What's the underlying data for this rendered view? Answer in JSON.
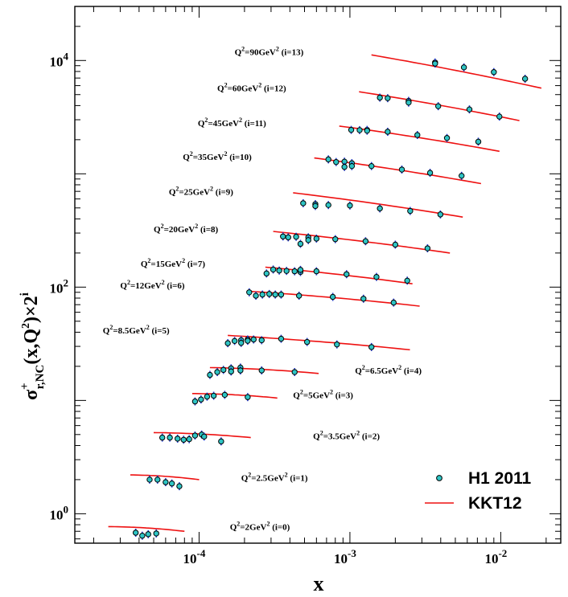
{
  "chart_data": {
    "type": "scatter",
    "xlabel": "x",
    "ylabel": {
      "base": "σ",
      "sup": "+",
      "sub": "r,NC",
      "rest": "(x,Q",
      "sup2": "2",
      "rest2": ")×2",
      "sup3": "i"
    },
    "xscale": "log",
    "yscale": "log",
    "xlim": [
      1.5e-05,
      0.025
    ],
    "ylim": [
      0.55,
      30000
    ],
    "x_ticks": [
      {
        "value": 0.0001,
        "base": "10",
        "exp": "-4"
      },
      {
        "value": 0.001,
        "base": "10",
        "exp": "-3"
      },
      {
        "value": 0.01,
        "base": "10",
        "exp": "-2"
      }
    ],
    "y_ticks": [
      {
        "value": 1,
        "base": "10",
        "exp": "0"
      },
      {
        "value": 100,
        "base": "10",
        "exp": "2"
      },
      {
        "value": 10000,
        "base": "10",
        "exp": "4"
      }
    ],
    "legend": {
      "position": "bottom-right",
      "entries": [
        {
          "label": "H1 2011",
          "type": "marker",
          "color": "#2ec4c4"
        },
        {
          "label": "KKT12",
          "type": "line",
          "color": "#ee1111"
        }
      ]
    },
    "colors": {
      "data_fill": "#2ec4c4",
      "data_edge": "#000000",
      "error_bar": "#1e3cd2",
      "model_line": "#ee1111"
    },
    "bins": [
      {
        "i": 0,
        "label": "Q²=2GeV² (i=0)",
        "label_x": 0.00016,
        "label_y": 0.72,
        "label_side": "right",
        "model": [
          [
            2.5e-05,
            0.77
          ],
          [
            8e-05,
            0.7
          ]
        ],
        "points": [
          [
            3.8e-05,
            0.68,
            0.04
          ],
          [
            4.2e-05,
            0.64,
            0.05
          ],
          [
            4.6e-05,
            0.66,
            0.03
          ],
          [
            5.2e-05,
            0.67,
            0.03
          ]
        ]
      },
      {
        "i": 1,
        "label": "Q²=2.5GeV² (i=1)",
        "label_x": 0.00019,
        "label_y": 1.95,
        "label_side": "right",
        "model": [
          [
            3.5e-05,
            2.2
          ],
          [
            0.0001,
            2.0
          ]
        ],
        "points": [
          [
            4.7e-05,
            2.0,
            0.05
          ],
          [
            5.3e-05,
            2.0,
            0.05
          ],
          [
            6e-05,
            1.9,
            0.05
          ],
          [
            6.6e-05,
            1.85,
            0.05
          ],
          [
            7.4e-05,
            1.75,
            0.08
          ]
        ]
      },
      {
        "i": 2,
        "label": "Q²=3.5GeV² (i=2)",
        "label_x": 0.00057,
        "label_y": 4.55,
        "label_side": "right",
        "model": [
          [
            5e-05,
            5.2
          ],
          [
            0.00022,
            4.7
          ]
        ],
        "points": [
          [
            5.7e-05,
            4.7,
            0.1
          ],
          [
            6.4e-05,
            4.7,
            0.1
          ],
          [
            7.2e-05,
            4.6,
            0.1
          ],
          [
            7.9e-05,
            4.5,
            0.2
          ],
          [
            8.6e-05,
            4.55,
            0.1
          ],
          [
            9.4e-05,
            4.9,
            0.1
          ],
          [
            0.000104,
            5.0,
            0.15
          ],
          [
            0.000108,
            4.8,
            0.1
          ],
          [
            0.00014,
            4.35,
            0.1
          ]
        ]
      },
      {
        "i": 3,
        "label": "Q²=5GeV² (i=3)",
        "label_x": 0.00042,
        "label_y": 10.5,
        "label_side": "right",
        "model": [
          [
            9e-05,
            11.5
          ],
          [
            0.00033,
            10.5
          ]
        ],
        "points": [
          [
            9.4e-05,
            9.8,
            0.4
          ],
          [
            0.000103,
            10.2,
            0.2
          ],
          [
            0.000113,
            10.8,
            0.2
          ],
          [
            0.000125,
            11.0,
            0.2
          ],
          [
            0.000148,
            11.2,
            0.3
          ],
          [
            0.00021,
            10.7,
            0.2
          ]
        ]
      },
      {
        "i": 4,
        "label": "Q²=6.5GeV² (i=4)",
        "label_x": 0.00108,
        "label_y": 17.2,
        "label_side": "right",
        "model": [
          [
            0.000118,
            19.5
          ],
          [
            0.00062,
            17.3
          ]
        ],
        "points": [
          [
            0.000118,
            16.8,
            0.7
          ],
          [
            0.000132,
            17.8,
            0.4
          ],
          [
            0.000145,
            18.6,
            0.3
          ],
          [
            0.000163,
            19.2,
            0.3
          ],
          [
            0.000163,
            18.0,
            0.5
          ],
          [
            0.000188,
            19.5,
            0.4
          ],
          [
            0.000188,
            18.4,
            0.3
          ],
          [
            0.00026,
            18.4,
            0.3
          ],
          [
            0.00043,
            17.8,
            0.3
          ]
        ]
      },
      {
        "i": 5,
        "label": "Q²=8.5GeV² (i=5)",
        "label_x": 2.3e-05,
        "label_y": 39,
        "label_side": "left",
        "model": [
          [
            0.000155,
            37.5
          ],
          [
            0.0025,
            28
          ]
        ],
        "points": [
          [
            0.000155,
            32.0,
            1.3
          ],
          [
            0.000172,
            33.5,
            0.6
          ],
          [
            0.00019,
            34.0,
            0.6
          ],
          [
            0.00019,
            32.2,
            1.0
          ],
          [
            0.00021,
            34.5,
            0.5
          ],
          [
            0.00021,
            33.6,
            0.6
          ],
          [
            0.00023,
            34.5,
            0.5
          ],
          [
            0.00026,
            34.0,
            0.5
          ],
          [
            0.00035,
            35.0,
            0.5
          ],
          [
            0.00052,
            32.8,
            0.5
          ],
          [
            0.00082,
            31.2,
            0.5
          ],
          [
            0.00139,
            29.6,
            0.5
          ]
        ]
      },
      {
        "i": 6,
        "label": "Q²=12GeV² (i=6)",
        "label_x": 3e-05,
        "label_y": 97,
        "label_side": "left",
        "model": [
          [
            0.00021,
            92
          ],
          [
            0.0029,
            68
          ]
        ],
        "points": [
          [
            0.000215,
            90,
            2
          ],
          [
            0.000238,
            84,
            2
          ],
          [
            0.000263,
            86,
            2
          ],
          [
            0.000292,
            87,
            2
          ],
          [
            0.00032,
            86,
            2
          ],
          [
            0.00035,
            86,
            2
          ],
          [
            0.00046,
            84,
            2
          ],
          [
            0.00077,
            82,
            2
          ],
          [
            0.00123,
            79,
            2
          ],
          [
            0.00195,
            73,
            2
          ]
        ]
      },
      {
        "i": 7,
        "label": "Q²=15GeV² (i=7)",
        "label_x": 4.1e-05,
        "label_y": 151,
        "label_side": "left",
        "model": [
          [
            0.000275,
            150
          ],
          [
            0.0026,
            107
          ]
        ],
        "points": [
          [
            0.00028,
            132,
            5
          ],
          [
            0.00031,
            143,
            3
          ],
          [
            0.00034,
            140,
            3
          ],
          [
            0.00038,
            139,
            3
          ],
          [
            0.00043,
            138,
            3
          ],
          [
            0.00047,
            136,
            3
          ],
          [
            0.00047,
            142,
            3
          ],
          [
            0.0006,
            138,
            3
          ],
          [
            0.00095,
            130,
            3
          ],
          [
            0.0015,
            123,
            3
          ],
          [
            0.0024,
            114,
            3
          ]
        ]
      },
      {
        "i": 8,
        "label": "Q²=20GeV² (i=8)",
        "label_x": 5e-05,
        "label_y": 305,
        "label_side": "left",
        "model": [
          [
            0.00031,
            310
          ],
          [
            0.0046,
            200
          ]
        ],
        "points": [
          [
            0.00036,
            280,
            5
          ],
          [
            0.00039,
            275,
            5
          ],
          [
            0.00044,
            278,
            5
          ],
          [
            0.00047,
            241,
            12
          ],
          [
            0.00053,
            275,
            5
          ],
          [
            0.00053,
            260,
            5
          ],
          [
            0.0006,
            268,
            5
          ],
          [
            0.0008,
            265,
            5
          ],
          [
            0.00127,
            254,
            5
          ],
          [
            0.002,
            237,
            5
          ],
          [
            0.00327,
            220,
            5
          ]
        ]
      },
      {
        "i": 9,
        "label": "Q²=25GeV² (i=9)",
        "label_x": 6.3e-05,
        "label_y": 650,
        "label_side": "left",
        "model": [
          [
            0.00042,
            680
          ],
          [
            0.0056,
            415
          ]
        ],
        "points": [
          [
            0.00049,
            550,
            10
          ],
          [
            0.00059,
            540,
            10
          ],
          [
            0.00059,
            520,
            10
          ],
          [
            0.00072,
            530,
            10
          ],
          [
            0.001,
            525,
            10
          ],
          [
            0.00158,
            495,
            10
          ],
          [
            0.00251,
            470,
            10
          ],
          [
            0.00398,
            438,
            10
          ]
        ]
      },
      {
        "i": 10,
        "label": "Q²=35GeV² (i=10)",
        "label_x": 7.8e-05,
        "label_y": 1330,
        "label_side": "left",
        "model": [
          [
            0.00058,
            1380
          ],
          [
            0.0074,
            820
          ]
        ],
        "points": [
          [
            0.00072,
            1340,
            30
          ],
          [
            0.00081,
            1270,
            30
          ],
          [
            0.00092,
            1280,
            30
          ],
          [
            0.00092,
            1150,
            40
          ],
          [
            0.00103,
            1240,
            30
          ],
          [
            0.00103,
            1170,
            30
          ],
          [
            0.00139,
            1170,
            30
          ],
          [
            0.00221,
            1090,
            30
          ],
          [
            0.0034,
            1020,
            30
          ],
          [
            0.0055,
            960,
            30
          ]
        ]
      },
      {
        "i": 11,
        "label": "Q²=45GeV² (i=11)",
        "label_x": 9.8e-05,
        "label_y": 2630,
        "label_side": "left",
        "model": [
          [
            0.00085,
            2640
          ],
          [
            0.0098,
            1580
          ]
        ],
        "points": [
          [
            0.00102,
            2440,
            40
          ],
          [
            0.00116,
            2430,
            40
          ],
          [
            0.0013,
            2440,
            40
          ],
          [
            0.0013,
            2400,
            40
          ],
          [
            0.00178,
            2350,
            40
          ],
          [
            0.0028,
            2200,
            40
          ],
          [
            0.0044,
            2070,
            40
          ],
          [
            0.0071,
            1920,
            40
          ]
        ]
      },
      {
        "i": 12,
        "label": "Q²=60GeV² (i=12)",
        "label_x": 0.000132,
        "label_y": 5350,
        "label_side": "left",
        "model": [
          [
            0.00115,
            5300
          ],
          [
            0.0133,
            2950
          ]
        ],
        "points": [
          [
            0.00158,
            4700,
            200
          ],
          [
            0.00178,
            4650,
            80
          ],
          [
            0.00245,
            4400,
            80
          ],
          [
            0.00245,
            4250,
            80
          ],
          [
            0.00385,
            3950,
            80
          ],
          [
            0.0062,
            3700,
            80
          ],
          [
            0.0098,
            3200,
            80
          ]
        ]
      },
      {
        "i": 13,
        "label": "Q²=90GeV² (i=13)",
        "label_x": 0.000172,
        "label_y": 11200,
        "label_side": "left",
        "model": [
          [
            0.00139,
            11200
          ],
          [
            0.0186,
            5700
          ]
        ],
        "points": [
          [
            0.00367,
            9600,
            200
          ],
          [
            0.00367,
            9400,
            200
          ],
          [
            0.0057,
            8700,
            100
          ],
          [
            0.009,
            7900,
            100
          ],
          [
            0.0145,
            6900,
            100
          ]
        ]
      }
    ]
  }
}
